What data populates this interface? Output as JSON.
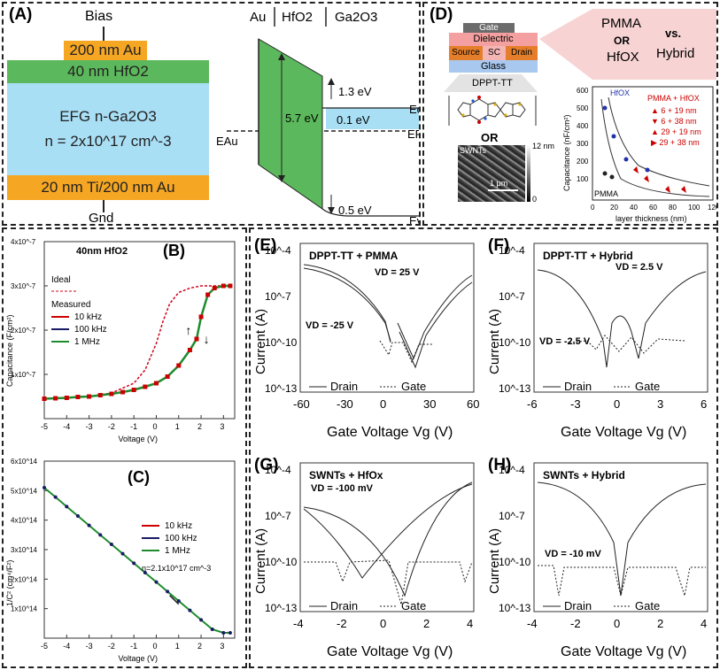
{
  "panelA": {
    "label": "(A)",
    "bias": "Bias",
    "gnd": "Gnd",
    "layers": {
      "top_au": "200 nm Au",
      "hfo2": "40 nm HfO2",
      "ga2o3_line1": "EFG n-Ga2O3",
      "ga2o3_line2": "n = 2x10^17 cm^-3",
      "bottom": "20 nm Ti/200 nm Au"
    },
    "band": {
      "au": "Au",
      "hfo2": "HfO2",
      "ga2o3": "Ga2O3",
      "e_au": "EAu",
      "gap": "5.7 eV",
      "offset1": "1.3 eV",
      "offset2": "0.1 eV",
      "offset3": "0.5 eV",
      "ec": "Ec",
      "ef": "EF",
      "ev": "Ev"
    },
    "colors": {
      "au": "#f5a623",
      "hfo2": "#5cb85c",
      "ga2o3": "#a9dff5"
    }
  },
  "panelD": {
    "label": "(D)",
    "stack": {
      "gate": "Gate",
      "dielectric": "Dielectric",
      "source": "Source",
      "sc": "SC",
      "drain": "Drain",
      "glass": "Glass"
    },
    "compare": {
      "pmma": "PMMA",
      "or1": "OR",
      "hfox": "HfOX",
      "vs": "vs.",
      "hybrid": "Hybrid"
    },
    "molecule": "DPPT-TT",
    "or2": "OR",
    "swnts": "SWNTs",
    "scale": "1 μm",
    "cbar_top": "12 nm",
    "cbar_bottom": "0",
    "inset": {
      "ylabel": "Capacitance (nF/cm²)",
      "xlabel": "layer thickness (nm)",
      "hfox": "HfOX",
      "pmma": "PMMA",
      "legend_title": "PMMA + HfOX",
      "legend": [
        "6 + 19 nm",
        "6 + 38 nm",
        "29 + 19 nm",
        "29 + 38 nm"
      ],
      "xticks": [
        "0",
        "20",
        "40",
        "60",
        "80",
        "100",
        "120"
      ],
      "yticks": [
        "100",
        "200",
        "300",
        "400",
        "500",
        "600"
      ]
    }
  },
  "chart_data": [
    {
      "id": "B",
      "label": "(B)",
      "type": "line",
      "title": "40nm HfO2",
      "xlabel": "Voltage (V)",
      "ylabel": "Capacitance (F/cm²)",
      "xlim": [
        -5,
        3.5
      ],
      "ylim": [
        0,
        4e-07
      ],
      "xticks": [
        "-5",
        "-4",
        "-3",
        "-2",
        "-1",
        "0",
        "1",
        "2",
        "3"
      ],
      "yticks": [
        "1x10^-7",
        "2x10^-7",
        "3x10^-7",
        "4x10^-7"
      ],
      "legend": {
        "ideal": "Ideal",
        "measured": "Measured",
        "items": [
          "10 kHz",
          "100 kHz",
          "1 MHz"
        ]
      },
      "ideal": {
        "x": [
          -5,
          -3,
          -2,
          -1,
          -0.5,
          0,
          0.3,
          0.6,
          1,
          1.5,
          2,
          2.5,
          3,
          3.3
        ],
        "y": [
          4.5e-08,
          5e-08,
          5.8e-08,
          8e-08,
          1.1e-07,
          1.7e-07,
          2.2e-07,
          2.6e-07,
          2.85e-07,
          2.95e-07,
          3e-07,
          3e-07,
          3e-07,
          3e-07
        ]
      },
      "measured": {
        "x": [
          -5,
          -4.5,
          -4,
          -3.5,
          -3,
          -2.5,
          -2,
          -1.5,
          -1,
          -0.5,
          0,
          0.5,
          1,
          1.5,
          1.8,
          2,
          2.3,
          2.6,
          3,
          3.3
        ],
        "y": [
          4.5e-08,
          4.6e-08,
          4.7e-08,
          4.9e-08,
          5e-08,
          5.3e-08,
          5.6e-08,
          6e-08,
          6.5e-08,
          7.2e-08,
          8e-08,
          9.5e-08,
          1.2e-07,
          1.55e-07,
          1.8e-07,
          2.3e-07,
          2.8e-07,
          2.95e-07,
          3e-07,
          3e-07
        ]
      }
    },
    {
      "id": "C",
      "label": "(C)",
      "type": "line",
      "xlabel": "Voltage (V)",
      "ylabel": "1/C² (cm⁴/F²)",
      "xlim": [
        -5,
        3.5
      ],
      "ylim": [
        0,
        600000000000000.0
      ],
      "xticks": [
        "-5",
        "-4",
        "-3",
        "-2",
        "-1",
        "0",
        "1",
        "2",
        "3"
      ],
      "yticks": [
        "1x10^14",
        "2x10^14",
        "3x10^14",
        "4x10^14",
        "5x10^14",
        "6x10^14"
      ],
      "legend": {
        "items": [
          "10 kHz",
          "100 kHz",
          "1 MHz"
        ],
        "note": "n=2.1x10^17 cm^-3"
      },
      "series": {
        "x": [
          -5,
          -4.5,
          -4,
          -3.5,
          -3,
          -2.5,
          -2,
          -1.5,
          -1,
          -0.5,
          0,
          0.5,
          1,
          1.5,
          2,
          2.5,
          3,
          3.3
        ],
        "y": [
          510000000000000.0,
          478000000000000.0,
          446000000000000.0,
          414000000000000.0,
          382000000000000.0,
          350000000000000.0,
          318000000000000.0,
          286000000000000.0,
          254000000000000.0,
          222000000000000.0,
          190000000000000.0,
          158000000000000.0,
          126000000000000.0,
          94000000000000.0,
          62000000000000.0,
          30000000000000.0,
          18000000000000.0,
          18000000000000.0
        ]
      }
    },
    {
      "id": "E",
      "label": "(E)",
      "type": "line",
      "title": "DPPT-TT + PMMA",
      "xlabel": "Gate Voltage Vg (V)",
      "ylabel": "Current (A)",
      "xticks": [
        "-60",
        "-30",
        "0",
        "30",
        "60"
      ],
      "yticks": [
        "10^-4",
        "10^-7",
        "10^-10",
        "10^-13"
      ],
      "annot": [
        "VD = 25 V",
        "VD = -25 V"
      ],
      "legend": [
        "Drain",
        "Gate"
      ]
    },
    {
      "id": "F",
      "label": "(F)",
      "type": "line",
      "title": "DPPT-TT + Hybrid",
      "xlabel": "Gate Voltage Vg (V)",
      "ylabel": "Current (A)",
      "xticks": [
        "-6",
        "-3",
        "0",
        "3",
        "6"
      ],
      "yticks": [
        "10^-4",
        "10^-7",
        "10^-10",
        "10^-13"
      ],
      "annot": [
        "VD = 2.5 V",
        "VD = -2.5 V"
      ],
      "legend": [
        "Drain",
        "Gate"
      ]
    },
    {
      "id": "G",
      "label": "(G)",
      "type": "line",
      "title": "SWNTs + HfOx",
      "xlabel": "Gate Voltage Vg (V)",
      "ylabel": "Current (A)",
      "xticks": [
        "-4",
        "-2",
        "0",
        "2",
        "4"
      ],
      "yticks": [
        "10^-4",
        "10^-7",
        "10^-10",
        "10^-13"
      ],
      "annot": [
        "VD = -100 mV"
      ],
      "legend": [
        "Drain",
        "Gate"
      ]
    },
    {
      "id": "H",
      "label": "(H)",
      "type": "line",
      "title": "SWNTs + Hybrid",
      "xlabel": "Gate Voltage Vg (V)",
      "ylabel": "Current (A)",
      "xticks": [
        "-4",
        "-2",
        "0",
        "2",
        "4"
      ],
      "yticks": [
        "10^-4",
        "10^-7",
        "10^-10",
        "10^-13"
      ],
      "annot": [
        "VD = -10 mV"
      ],
      "legend": [
        "Drain",
        "Gate"
      ]
    }
  ]
}
